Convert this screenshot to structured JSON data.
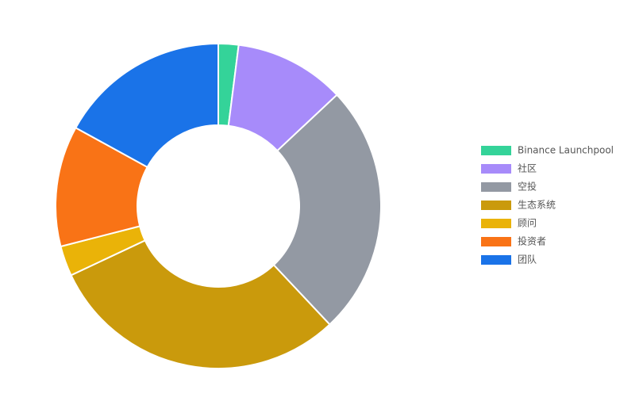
{
  "chart_data": {
    "type": "donut",
    "categories": [
      "Binance Launchpool",
      "社区",
      "空投",
      "生态系统",
      "顾问",
      "投资者",
      "团队"
    ],
    "values": [
      2,
      11,
      25,
      30,
      3,
      12,
      17
    ],
    "colors": [
      "#34d399",
      "#a78bfa",
      "#9399a3",
      "#ca9a0c",
      "#eab308",
      "#f97316",
      "#1a73e8"
    ],
    "legend": "right"
  }
}
